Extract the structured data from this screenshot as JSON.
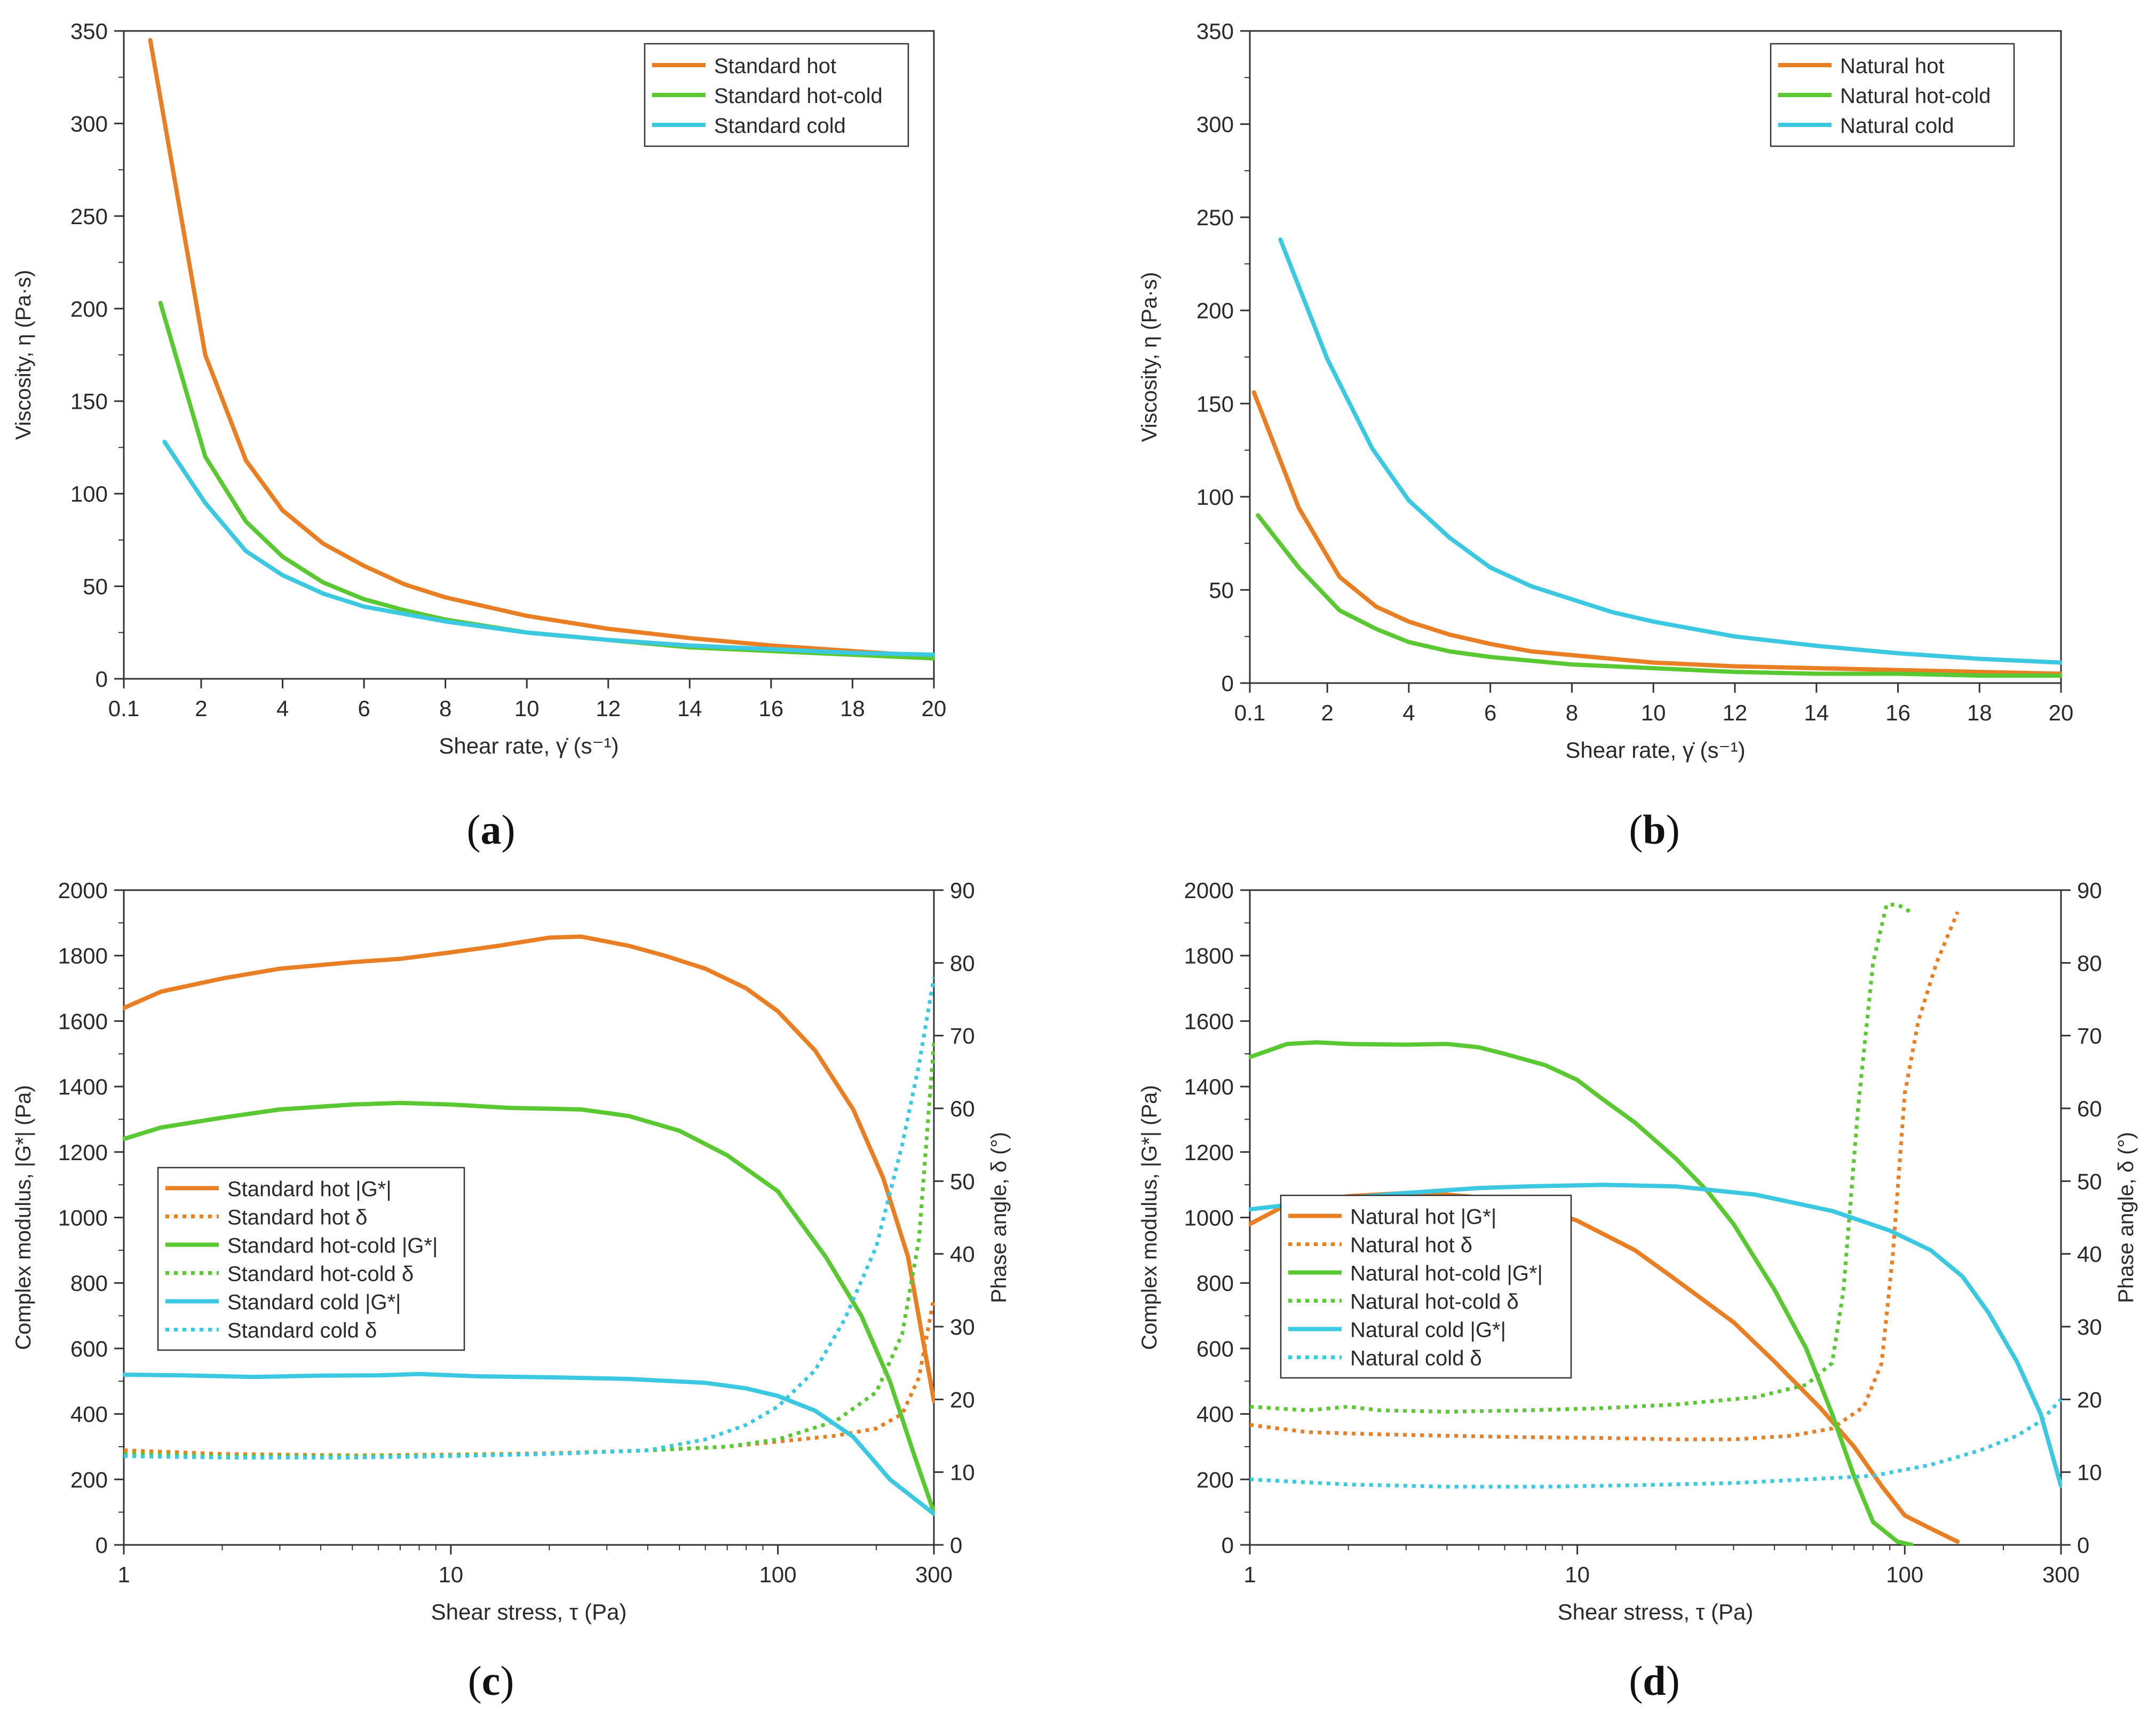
{
  "colors": {
    "orange": "#E87F24",
    "green": "#5AC832",
    "cyan": "#3CC8E0",
    "axis": "#333333"
  },
  "panel_labels": {
    "a": "(a)",
    "b": "(b)",
    "c": "(c)",
    "d": "(d)"
  },
  "panel_letters": {
    "a": "a",
    "b": "b",
    "c": "c",
    "d": "d"
  },
  "chart_data": [
    {
      "id": "a",
      "type": "line",
      "title": "",
      "xlabel": "Shear rate, γ̇ (s⁻¹)",
      "ylabel": "Viscosity, η (Pa·s)",
      "xlim": [
        0.1,
        20
      ],
      "ylim": [
        0,
        350
      ],
      "xticks": [
        0.1,
        2,
        4,
        6,
        8,
        10,
        12,
        14,
        16,
        18,
        20
      ],
      "xtick_labels": [
        "0.1",
        "2",
        "4",
        "6",
        "8",
        "10",
        "12",
        "14",
        "16",
        "18",
        "20"
      ],
      "yticks": [
        0,
        50,
        100,
        150,
        200,
        250,
        300,
        350
      ],
      "ytick_labels": [
        "0",
        "50",
        "100",
        "150",
        "200",
        "250",
        "300",
        "350"
      ],
      "legend_position": "top-right",
      "series": [
        {
          "name": "Standard hot",
          "color": "orange",
          "x": [
            0.75,
            2.1,
            3.1,
            4,
            5,
            6,
            7,
            8,
            10,
            12,
            14,
            16,
            18,
            20
          ],
          "y": [
            345,
            175,
            118,
            91,
            73,
            61,
            51,
            44,
            34,
            27,
            22,
            18,
            15,
            12
          ]
        },
        {
          "name": "Standard hot-cold",
          "color": "green",
          "x": [
            1.0,
            2.1,
            3.1,
            4,
            5,
            6,
            7,
            8,
            10,
            12,
            14,
            16,
            18,
            20
          ],
          "y": [
            203,
            120,
            85,
            66,
            52,
            43,
            37,
            32,
            25,
            21,
            17,
            15,
            13,
            11
          ]
        },
        {
          "name": "Standard cold",
          "color": "cyan",
          "x": [
            1.1,
            2.1,
            3.1,
            4,
            5,
            6,
            7,
            8,
            10,
            12,
            14,
            16,
            18,
            20
          ],
          "y": [
            128,
            95,
            69,
            56,
            46,
            39,
            35,
            31,
            25,
            21,
            18,
            16,
            14,
            13
          ]
        }
      ]
    },
    {
      "id": "b",
      "type": "line",
      "title": "",
      "xlabel": "Shear rate, γ̇ (s⁻¹)",
      "ylabel": "Viscosity, η (Pa·s)",
      "xlim": [
        0.1,
        20
      ],
      "ylim": [
        0,
        350
      ],
      "xticks": [
        0.1,
        2,
        4,
        6,
        8,
        10,
        12,
        14,
        16,
        18,
        20
      ],
      "xtick_labels": [
        "0.1",
        "2",
        "4",
        "6",
        "8",
        "10",
        "12",
        "14",
        "16",
        "18",
        "20"
      ],
      "yticks": [
        0,
        50,
        100,
        150,
        200,
        250,
        300,
        350
      ],
      "ytick_labels": [
        "0",
        "50",
        "100",
        "150",
        "200",
        "250",
        "300",
        "350"
      ],
      "legend_position": "top-right",
      "series": [
        {
          "name": "Natural hot",
          "color": "orange",
          "x": [
            0.2,
            1.3,
            2.3,
            3.2,
            4,
            5,
            6,
            7,
            8,
            10,
            12,
            14,
            16,
            18,
            20
          ],
          "y": [
            156,
            94,
            57,
            41,
            33,
            26,
            21,
            17,
            15,
            11,
            9,
            8,
            7,
            6,
            5
          ]
        },
        {
          "name": "Natural hot-cold",
          "color": "green",
          "x": [
            0.3,
            1.3,
            2.3,
            3.2,
            4,
            5,
            6,
            7,
            8,
            10,
            12,
            14,
            16,
            18,
            20
          ],
          "y": [
            90,
            62,
            39,
            29,
            22,
            17,
            14,
            12,
            10,
            8,
            6,
            5,
            5,
            4,
            4
          ]
        },
        {
          "name": "Natural cold",
          "color": "cyan",
          "x": [
            0.85,
            2.0,
            3.1,
            4,
            5,
            6,
            7,
            8,
            9,
            10,
            12,
            14,
            16,
            18,
            20
          ],
          "y": [
            238,
            174,
            126,
            98,
            78,
            62,
            52,
            45,
            38,
            33,
            25,
            20,
            16,
            13,
            11
          ]
        }
      ]
    },
    {
      "id": "c",
      "type": "line",
      "xscale": "log",
      "title": "",
      "xlabel": "Shear stress, τ (Pa)",
      "ylabel": "Complex modulus, |G*| (Pa)",
      "y2label": "Phase angle, δ (°)",
      "xlim": [
        1,
        300
      ],
      "ylim": [
        0,
        2000
      ],
      "y2lim": [
        0,
        90
      ],
      "xticks": [
        1,
        10,
        100,
        300
      ],
      "xtick_labels": [
        "1",
        "10",
        "100",
        "300"
      ],
      "yticks": [
        0,
        200,
        400,
        600,
        800,
        1000,
        1200,
        1400,
        1600,
        1800,
        2000
      ],
      "ytick_labels": [
        "0",
        "200",
        "400",
        "600",
        "800",
        "1000",
        "1200",
        "1400",
        "1600",
        "1800",
        "2000"
      ],
      "y2ticks": [
        0,
        10,
        20,
        30,
        40,
        50,
        60,
        70,
        80,
        90
      ],
      "y2tick_labels": [
        "0",
        "10",
        "20",
        "30",
        "40",
        "50",
        "60",
        "70",
        "80",
        "90"
      ],
      "legend_position": "left",
      "series": [
        {
          "name": "Standard hot |G*|",
          "color": "orange",
          "dash": false,
          "axis": "left",
          "x": [
            1,
            1.3,
            2,
            3,
            5,
            7,
            10,
            14,
            20,
            25,
            35,
            45,
            60,
            80,
            100,
            130,
            170,
            210,
            250,
            300
          ],
          "y": [
            1640,
            1690,
            1730,
            1760,
            1780,
            1790,
            1810,
            1830,
            1855,
            1858,
            1830,
            1800,
            1760,
            1700,
            1630,
            1510,
            1330,
            1120,
            880,
            440
          ]
        },
        {
          "name": "Standard hot δ",
          "color": "orange",
          "dash": true,
          "axis": "right",
          "x": [
            1,
            2,
            5,
            10,
            20,
            40,
            70,
            100,
            150,
            200,
            240,
            270,
            300
          ],
          "y": [
            13,
            12.5,
            12.3,
            12.4,
            12.6,
            13,
            13.5,
            14.2,
            15,
            16,
            18,
            23,
            34
          ]
        },
        {
          "name": "Standard hot-cold |G*|",
          "color": "green",
          "dash": false,
          "axis": "left",
          "x": [
            1,
            1.3,
            2,
            3,
            5,
            7,
            10,
            15,
            25,
            35,
            50,
            70,
            100,
            140,
            180,
            220,
            260,
            300
          ],
          "y": [
            1240,
            1275,
            1305,
            1330,
            1345,
            1350,
            1345,
            1335,
            1330,
            1310,
            1265,
            1190,
            1080,
            880,
            700,
            500,
            280,
            100
          ]
        },
        {
          "name": "Standard hot-cold δ",
          "color": "green",
          "dash": true,
          "axis": "right",
          "x": [
            1,
            2,
            5,
            10,
            20,
            40,
            70,
            100,
            150,
            200,
            240,
            270,
            300
          ],
          "y": [
            12.5,
            12.2,
            12.2,
            12.3,
            12.5,
            13,
            13.5,
            14.5,
            17,
            21,
            29,
            42,
            69
          ]
        },
        {
          "name": "Standard cold |G*|",
          "color": "cyan",
          "dash": false,
          "axis": "left",
          "x": [
            1,
            1.5,
            2.5,
            4,
            6,
            8,
            12,
            20,
            35,
            60,
            80,
            100,
            130,
            170,
            220,
            300
          ],
          "y": [
            520,
            518,
            513,
            517,
            518,
            522,
            515,
            512,
            507,
            495,
            478,
            455,
            410,
            330,
            200,
            95
          ]
        },
        {
          "name": "Standard cold δ",
          "color": "cyan",
          "dash": true,
          "axis": "right",
          "x": [
            1,
            2,
            5,
            10,
            20,
            40,
            60,
            80,
            100,
            130,
            160,
            200,
            240,
            270,
            300
          ],
          "y": [
            12.2,
            12,
            12,
            12.2,
            12.5,
            13,
            14.5,
            16.5,
            19,
            24,
            31,
            41,
            55,
            66,
            78
          ]
        }
      ]
    },
    {
      "id": "d",
      "type": "line",
      "xscale": "log",
      "title": "",
      "xlabel": "Shear stress, τ (Pa)",
      "ylabel": "Complex modulus, |G*| (Pa)",
      "y2label": "Phase angle, δ (°)",
      "xlim": [
        1,
        300
      ],
      "ylim": [
        0,
        2000
      ],
      "y2lim": [
        0,
        90
      ],
      "xticks": [
        1,
        10,
        100,
        300
      ],
      "xtick_labels": [
        "1",
        "10",
        "100",
        "300"
      ],
      "yticks": [
        0,
        200,
        400,
        600,
        800,
        1000,
        1200,
        1400,
        1600,
        1800,
        2000
      ],
      "ytick_labels": [
        "0",
        "200",
        "400",
        "600",
        "800",
        "1000",
        "1200",
        "1400",
        "1600",
        "1800",
        "2000"
      ],
      "y2ticks": [
        0,
        10,
        20,
        30,
        40,
        50,
        60,
        70,
        80,
        90
      ],
      "y2tick_labels": [
        "0",
        "10",
        "20",
        "30",
        "40",
        "50",
        "60",
        "70",
        "80",
        "90"
      ],
      "legend_position": "left",
      "series": [
        {
          "name": "Natural hot |G*|",
          "color": "orange",
          "dash": false,
          "axis": "left",
          "x": [
            1,
            1.3,
            2,
            3,
            4,
            6,
            8,
            10,
            15,
            20,
            30,
            40,
            55,
            70,
            85,
            100,
            120,
            145
          ],
          "y": [
            980,
            1040,
            1065,
            1075,
            1070,
            1055,
            1025,
            990,
            900,
            810,
            680,
            560,
            420,
            300,
            180,
            90,
            50,
            10
          ]
        },
        {
          "name": "Natural hot δ",
          "color": "orange",
          "dash": true,
          "axis": "right",
          "x": [
            1,
            1.5,
            2.5,
            4,
            7,
            12,
            20,
            30,
            45,
            60,
            75,
            85,
            92,
            100,
            110,
            125,
            145
          ],
          "y": [
            16.5,
            15.5,
            15.2,
            15,
            14.8,
            14.7,
            14.5,
            14.5,
            15,
            16,
            19,
            25,
            40,
            62,
            72,
            80,
            87
          ]
        },
        {
          "name": "Natural hot-cold |G*|",
          "color": "green",
          "dash": false,
          "axis": "left",
          "x": [
            1,
            1.3,
            1.6,
            2,
            3,
            4,
            5,
            6,
            8,
            10,
            12,
            15,
            20,
            25,
            30,
            40,
            50,
            60,
            70,
            80,
            95,
            105
          ],
          "y": [
            1490,
            1530,
            1535,
            1530,
            1528,
            1530,
            1520,
            1500,
            1465,
            1420,
            1360,
            1290,
            1180,
            1080,
            980,
            780,
            600,
            400,
            210,
            70,
            10,
            0
          ]
        },
        {
          "name": "Natural hot-cold δ",
          "color": "green",
          "dash": true,
          "axis": "right",
          "x": [
            1,
            1.5,
            2,
            2.5,
            4,
            7,
            12,
            20,
            35,
            50,
            60,
            65,
            72,
            80,
            88,
            95,
            100,
            104
          ],
          "y": [
            19,
            18.5,
            19,
            18.5,
            18.3,
            18.5,
            18.8,
            19.3,
            20.3,
            22,
            25,
            35,
            60,
            80,
            88,
            88,
            87.5,
            87
          ]
        },
        {
          "name": "Natural cold |G*|",
          "color": "cyan",
          "dash": false,
          "axis": "left",
          "x": [
            1,
            1.5,
            2,
            3,
            5,
            7,
            12,
            20,
            35,
            60,
            90,
            120,
            150,
            180,
            220,
            260,
            300
          ],
          "y": [
            1025,
            1045,
            1060,
            1075,
            1090,
            1095,
            1100,
            1095,
            1070,
            1020,
            960,
            900,
            820,
            710,
            560,
            400,
            180
          ]
        },
        {
          "name": "Natural cold δ",
          "color": "cyan",
          "dash": true,
          "axis": "right",
          "x": [
            1,
            2,
            4,
            8,
            15,
            30,
            50,
            80,
            120,
            170,
            220,
            260,
            300
          ],
          "y": [
            9,
            8.3,
            8,
            8,
            8.2,
            8.5,
            9,
            9.5,
            11,
            13,
            15,
            17,
            20
          ]
        }
      ]
    }
  ]
}
